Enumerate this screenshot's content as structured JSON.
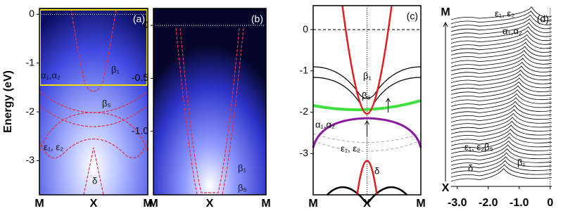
{
  "chart_data": [
    {
      "type": "heatmap",
      "label": "(a)",
      "ylabel": "Energy (eV)",
      "categories": [
        "M",
        "X",
        "M"
      ],
      "ylim": [
        -3.7,
        0.12
      ],
      "yticks": [
        0,
        -1,
        -2,
        -3
      ],
      "annotations": [
        "β₁",
        "α₁,α₂",
        "β₅",
        "ε₁, ε₂",
        "δ"
      ]
    },
    {
      "type": "heatmap",
      "label": "(b)",
      "categories": [
        "M",
        "X",
        "M"
      ],
      "ylim": [
        -1.6,
        0.16
      ],
      "yticks": [
        0,
        -0.5,
        {
          "value": -1,
          "label": "-1.0"
        }
      ],
      "annotations": [
        "β₁",
        "β₅"
      ]
    },
    {
      "type": "line",
      "label": "(c)",
      "categories": [
        "M",
        "X",
        "M"
      ],
      "ylim": [
        -4,
        0.58
      ],
      "yticks": [
        0,
        -1,
        -2,
        -3
      ],
      "annotations": [
        "β₁",
        "β₅",
        "α₁,α₂",
        "ε₁, ε₂",
        "δ"
      ]
    },
    {
      "type": "waterfall",
      "label": "(d)",
      "categories": [
        "M",
        "X"
      ],
      "xlim": [
        -3.2,
        0.05
      ],
      "xticks": [
        {
          "value": -3,
          "label": "-3.0"
        },
        {
          "value": -2,
          "label": "-2.0"
        },
        {
          "value": -1,
          "label": "-1.0"
        },
        0
      ],
      "annotations": [
        "ε₁, ε₂",
        "α₁,α₂",
        "ε₁, ε₂",
        "β₅",
        "δ",
        "β₁"
      ]
    }
  ]
}
